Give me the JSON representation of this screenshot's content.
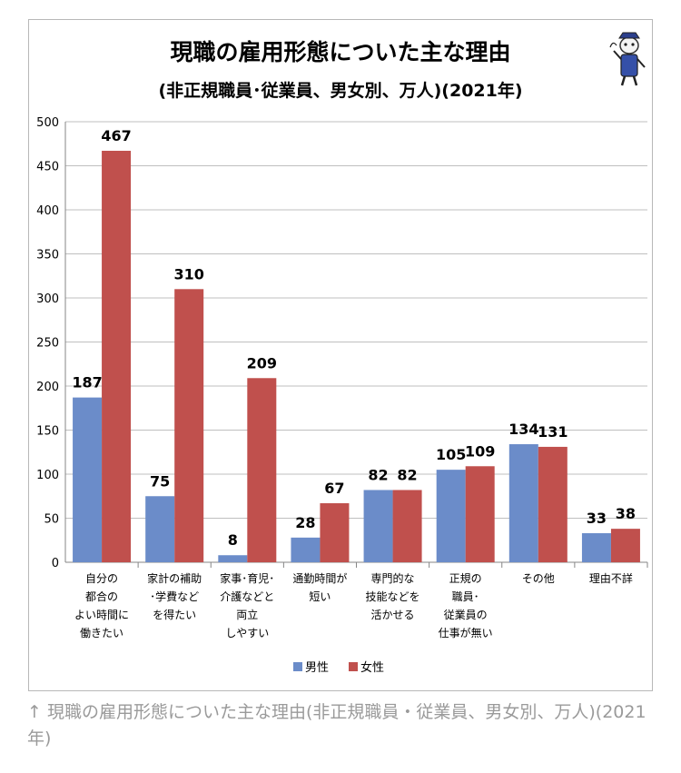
{
  "caption": "↑ 現職の雇用形態についた主な理由(非正規職員・従業員、男女別、万人)(2021年)",
  "colors": {
    "male": "#6b8cc9",
    "female": "#c0504d",
    "grid": "#bfbfbf",
    "axis": "#868686"
  },
  "mascot_icon": "mascot-figure-icon",
  "chart_data": {
    "type": "bar",
    "title": "現職の雇用形態についた主な理由",
    "subtitle": "(非正規職員･従業員、男女別、万人)(2021年)",
    "ylim": [
      0,
      500
    ],
    "yticks": [
      0,
      50,
      100,
      150,
      200,
      250,
      300,
      350,
      400,
      450,
      500
    ],
    "grid": true,
    "legend_position": "bottom",
    "categories": [
      [
        "自分の",
        "都合の",
        "よい時間に",
        "働きたい"
      ],
      [
        "家計の補助",
        "･学費など",
        "を得たい"
      ],
      [
        "家事･育児･",
        "介護などと",
        "両立",
        "しやすい"
      ],
      [
        "通勤時間が",
        "短い"
      ],
      [
        "専門的な",
        "技能などを",
        "活かせる"
      ],
      [
        "正規の",
        "職員･",
        "従業員の",
        "仕事が無い"
      ],
      [
        "その他"
      ],
      [
        "理由不詳"
      ]
    ],
    "series": [
      {
        "name": "男性",
        "values": [
          187,
          75,
          8,
          28,
          82,
          105,
          134,
          33
        ]
      },
      {
        "name": "女性",
        "values": [
          467,
          310,
          209,
          67,
          82,
          109,
          131,
          38
        ]
      }
    ]
  }
}
